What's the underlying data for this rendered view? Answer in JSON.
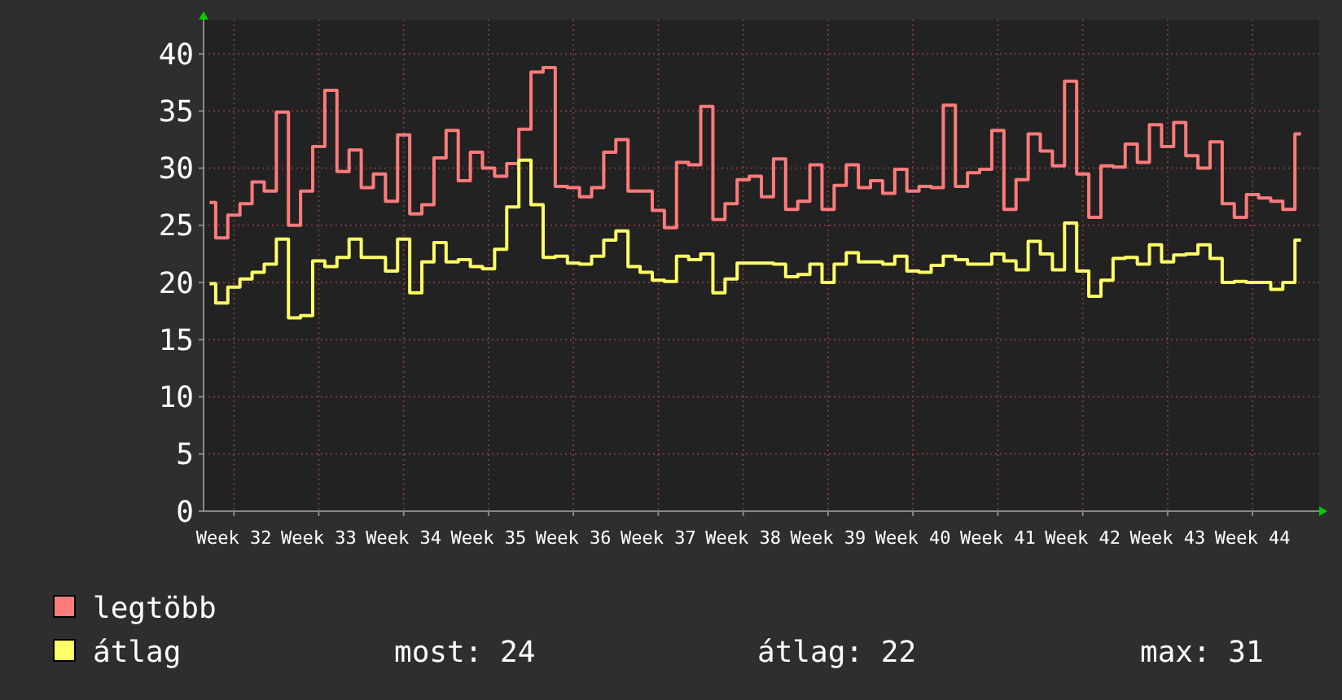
{
  "chart_data": {
    "type": "step",
    "categories": [
      null,
      null,
      "Week 32",
      null,
      null,
      null,
      null,
      null,
      null,
      "Week 33",
      null,
      null,
      null,
      null,
      null,
      null,
      "Week 34",
      null,
      null,
      null,
      null,
      null,
      null,
      "Week 35",
      null,
      null,
      null,
      null,
      null,
      null,
      "Week 36",
      null,
      null,
      null,
      null,
      null,
      null,
      "Week 37",
      null,
      null,
      null,
      null,
      null,
      null,
      "Week 38",
      null,
      null,
      null,
      null,
      null,
      null,
      "Week 39",
      null,
      null,
      null,
      null,
      null,
      null,
      "Week 40",
      null,
      null,
      null,
      null,
      null,
      null,
      "Week 41",
      null,
      null,
      null,
      null,
      null,
      null,
      "Week 42",
      null,
      null,
      null,
      null,
      null,
      null,
      "Week 43",
      null,
      null,
      null,
      null,
      null,
      null,
      "Week 44",
      null,
      null,
      null,
      null
    ],
    "series": [
      {
        "name": "legtöbb",
        "color": "#ff7b7b",
        "values": [
          27.0,
          23.9,
          25.9,
          26.9,
          28.8,
          28.0,
          34.9,
          25.0,
          28.0,
          31.9,
          36.8,
          29.7,
          31.6,
          28.3,
          29.5,
          27.1,
          32.9,
          26.0,
          26.8,
          30.9,
          33.3,
          28.9,
          31.4,
          30.0,
          29.3,
          30.4,
          33.4,
          38.4,
          38.8,
          28.4,
          28.3,
          27.5,
          28.3,
          31.4,
          32.5,
          28.0,
          28.0,
          26.3,
          24.8,
          30.5,
          30.3,
          35.4,
          25.5,
          26.9,
          29.0,
          29.3,
          27.5,
          30.8,
          26.4,
          27.1,
          30.3,
          26.4,
          28.5,
          30.3,
          28.3,
          28.9,
          27.8,
          29.9,
          28.0,
          28.4,
          28.3,
          35.5,
          28.4,
          29.6,
          29.9,
          33.3,
          26.4,
          29.0,
          33.0,
          31.5,
          30.2,
          37.6,
          29.5,
          25.7,
          30.2,
          30.1,
          32.1,
          30.5,
          33.8,
          31.9,
          34.0,
          31.1,
          30.0,
          32.3,
          26.9,
          25.7,
          27.7,
          27.4,
          27.1,
          26.4,
          33.0
        ]
      },
      {
        "name": "átlag",
        "color": "#ffff66",
        "values": [
          19.9,
          18.2,
          19.6,
          20.3,
          20.9,
          21.6,
          23.8,
          16.9,
          17.1,
          21.9,
          21.4,
          22.2,
          23.8,
          22.2,
          22.2,
          21.0,
          23.8,
          19.1,
          21.8,
          23.5,
          21.8,
          22.0,
          21.4,
          21.2,
          22.9,
          26.6,
          30.7,
          26.8,
          22.2,
          22.3,
          21.7,
          21.6,
          22.3,
          23.7,
          24.5,
          21.4,
          20.9,
          20.2,
          20.1,
          22.3,
          22.0,
          22.5,
          19.1,
          20.3,
          21.7,
          21.7,
          21.7,
          21.6,
          20.5,
          20.7,
          21.6,
          20.0,
          21.6,
          22.6,
          21.8,
          21.8,
          21.6,
          22.3,
          21.0,
          20.9,
          21.5,
          22.3,
          22.0,
          21.6,
          21.6,
          22.5,
          21.9,
          21.1,
          23.6,
          22.5,
          21.1,
          25.2,
          21.0,
          18.8,
          20.2,
          22.1,
          22.2,
          21.6,
          23.3,
          21.8,
          22.4,
          22.5,
          23.3,
          22.1,
          20.0,
          20.1,
          20.0,
          20.0,
          19.4,
          20.0,
          23.7
        ]
      }
    ],
    "ylim": [
      0,
      43
    ],
    "yticks": [
      0,
      5,
      10,
      15,
      20,
      25,
      30,
      35,
      40
    ],
    "grid": true,
    "legend": "bottom",
    "line_style": "solid",
    "annotations": [
      "most: 24",
      "átlag: 22",
      "max: 31"
    ]
  }
}
